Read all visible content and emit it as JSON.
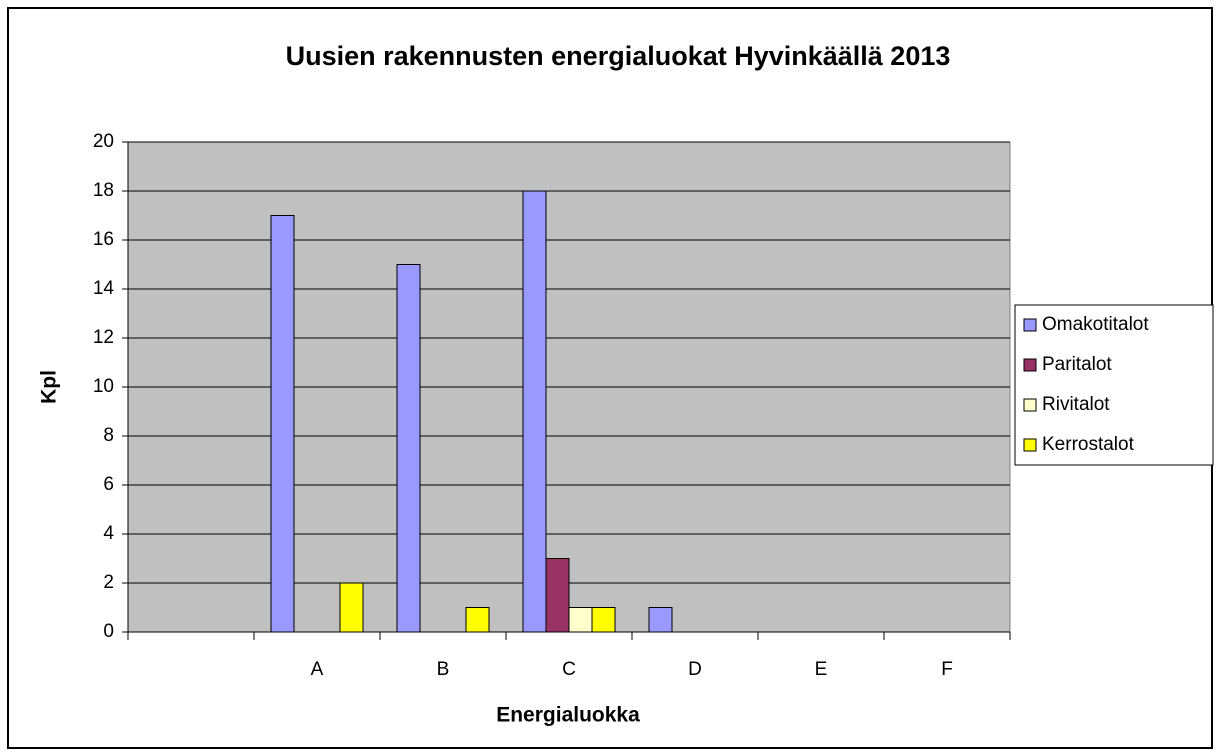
{
  "chart_data": {
    "type": "bar",
    "title": "Uusien rakennusten energialuokat Hyvinkäällä 2013",
    "x_label": "Energialuokka",
    "y_label": "Kpl",
    "categories": [
      null,
      "A",
      "B",
      "C",
      "D",
      "E",
      "F"
    ],
    "series": [
      {
        "name": "Omakotitalot",
        "color": "#9999ff",
        "values": [
          null,
          17,
          15,
          18,
          1,
          0,
          0
        ]
      },
      {
        "name": "Paritalot",
        "color": "#993366",
        "values": [
          null,
          0,
          0,
          3,
          0,
          0,
          0
        ]
      },
      {
        "name": "Rivitalot",
        "color": "#ffffcc",
        "values": [
          null,
          0,
          0,
          1,
          0,
          0,
          0
        ]
      },
      {
        "name": "Kerrostalot",
        "color": "#ffff00",
        "values": [
          null,
          2,
          1,
          1,
          0,
          0,
          0
        ]
      }
    ],
    "ylim": [
      0,
      20
    ],
    "yticks": [
      0,
      2,
      4,
      6,
      8,
      10,
      12,
      14,
      16,
      18,
      20
    ],
    "grid": true,
    "legend": "right"
  }
}
